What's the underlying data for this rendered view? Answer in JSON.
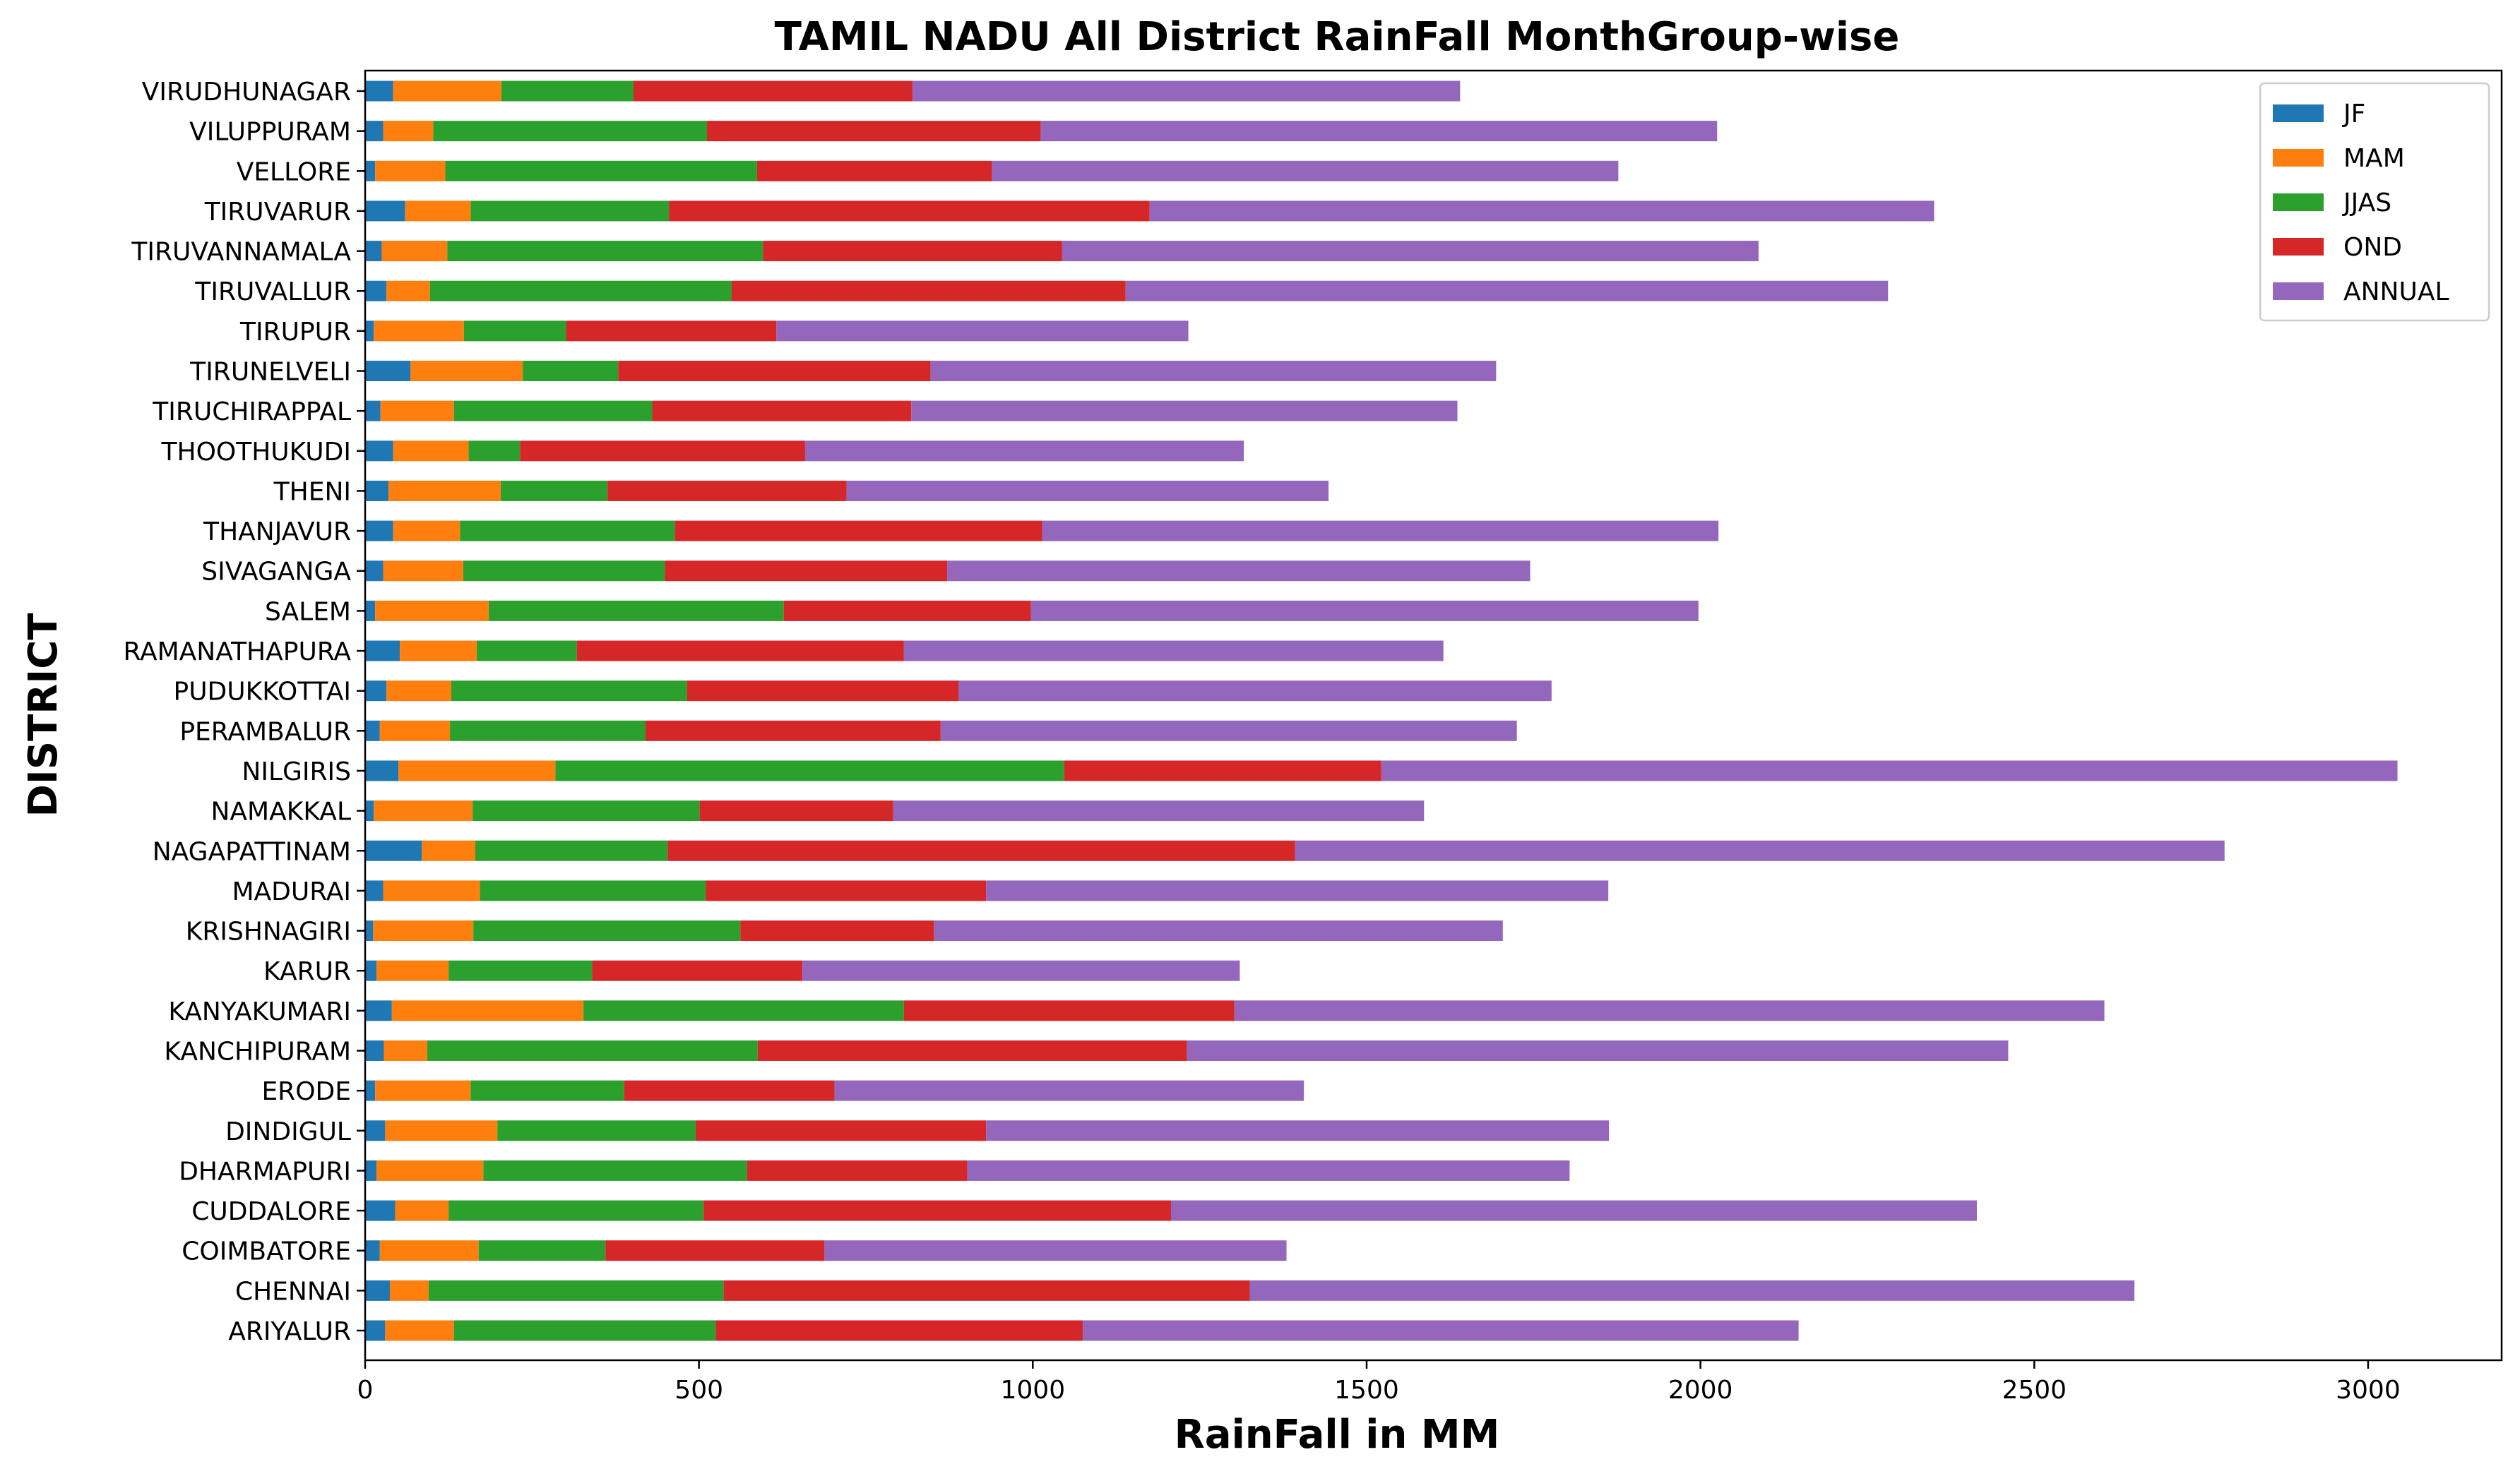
{
  "chart_data": {
    "type": "bar",
    "orientation": "horizontal",
    "stacked": true,
    "title": "TAMIL NADU All District RainFall MonthGroup-wise",
    "xlabel": "RainFall in MM",
    "ylabel": "DISTRICT",
    "xlim": [
      0,
      3200
    ],
    "xticks": [
      0,
      500,
      1000,
      1500,
      2000,
      2500,
      3000
    ],
    "grid": false,
    "legend_position": "top-right",
    "categories": [
      "ARIYALUR",
      "CHENNAI",
      "COIMBATORE",
      "CUDDALORE",
      "DHARMAPURI",
      "DINDIGUL",
      "ERODE",
      "KANCHIPURAM",
      "KANYAKUMARI",
      "KARUR",
      "KRISHNAGIRI",
      "MADURAI",
      "NAGAPATTINAM",
      "NAMAKKAL",
      "NILGIRIS",
      "PERAMBALUR",
      "PUDUKKOTTAI",
      "RAMANATHAPURA",
      "SALEM",
      "SIVAGANGA",
      "THANJAVUR",
      "THENI",
      "THOOTHUKUDI",
      "TIRUCHIRAPPAL",
      "TIRUNELVELI",
      "TIRUPUR",
      "TIRUVALLUR",
      "TIRUVANNAMALA",
      "TIRUVARUR",
      "VELLORE",
      "VILUPPURAM",
      "VIRUDHUNAGAR"
    ],
    "series": [
      {
        "name": "JF",
        "color": "#1f77b4",
        "values": [
          30,
          37,
          22,
          45,
          17,
          30,
          15,
          28,
          40,
          17,
          12,
          27,
          85,
          13,
          50,
          22,
          32,
          52,
          15,
          27,
          42,
          35,
          42,
          23,
          68,
          13,
          32,
          25,
          60,
          15,
          27,
          42
        ]
      },
      {
        "name": "MAM",
        "color": "#ff7f0e",
        "values": [
          103,
          58,
          148,
          80,
          160,
          168,
          143,
          65,
          287,
          108,
          150,
          145,
          80,
          148,
          235,
          105,
          97,
          115,
          170,
          120,
          100,
          168,
          113,
          110,
          168,
          135,
          65,
          98,
          98,
          105,
          75,
          162
        ]
      },
      {
        "name": "JJAS",
        "color": "#2ca02c",
        "values": [
          392,
          442,
          190,
          382,
          395,
          297,
          230,
          495,
          480,
          215,
          400,
          338,
          288,
          340,
          762,
          293,
          353,
          150,
          442,
          302,
          322,
          160,
          77,
          297,
          143,
          153,
          452,
          473,
          297,
          467,
          410,
          198
        ]
      },
      {
        "name": "OND",
        "color": "#d62728",
        "values": [
          550,
          788,
          328,
          700,
          330,
          435,
          315,
          643,
          495,
          315,
          290,
          420,
          940,
          290,
          475,
          442,
          407,
          490,
          370,
          423,
          550,
          358,
          427,
          388,
          468,
          315,
          590,
          448,
          720,
          352,
          500,
          418
        ]
      },
      {
        "name": "ANNUAL",
        "color": "#9467bd",
        "values": [
          1072,
          1325,
          692,
          1207,
          902,
          933,
          703,
          1230,
          1303,
          655,
          852,
          932,
          1392,
          795,
          1522,
          863,
          888,
          808,
          1000,
          873,
          1013,
          722,
          657,
          818,
          847,
          617,
          1142,
          1043,
          1175,
          938,
          1013,
          820
        ]
      }
    ]
  }
}
